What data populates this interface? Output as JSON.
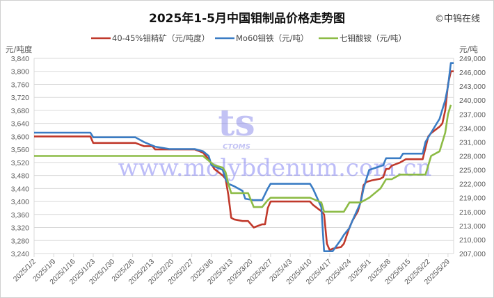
{
  "chart_data": {
    "type": "line",
    "title": "2025年1-5月中国钼制品价格走势图",
    "copyright": "©中钨在线",
    "watermark": {
      "logo_text": "CTOMS",
      "text": "www.molybdenum.com.cn"
    },
    "x_axis": {
      "type": "date",
      "range": [
        "2025-01-02",
        "2025-05-31"
      ],
      "tick_labels": [
        "2025/1/2",
        "2025/1/9",
        "2025/1/16",
        "2025/1/23",
        "2025/1/30",
        "2025/2/6",
        "2025/2/13",
        "2025/2/20",
        "2025/2/27",
        "2025/3/6",
        "2025/3/13",
        "2025/3/20",
        "2025/3/27",
        "2025/4/3",
        "2025/4/10",
        "2025/4/17",
        "2025/4/24",
        "2025/5/1",
        "2025/5/8",
        "2025/5/15",
        "2025/5/22",
        "2025/5/29"
      ]
    },
    "y_left": {
      "label": "元/吨度",
      "range": [
        3240,
        3840
      ],
      "step": 40,
      "grid": true
    },
    "y_right": {
      "label": "元/吨",
      "range": [
        207000,
        249000
      ],
      "step": 3000
    },
    "legend": {
      "placement": "top"
    },
    "series": [
      {
        "name": "40-45%钼精矿（元/吨度）",
        "axis": "left",
        "color": "#c0392b",
        "points": [
          [
            "2025-01-02",
            3600
          ],
          [
            "2025-01-22",
            3600
          ],
          [
            "2025-01-23",
            3580
          ],
          [
            "2025-02-07",
            3580
          ],
          [
            "2025-02-10",
            3570
          ],
          [
            "2025-02-13",
            3570
          ],
          [
            "2025-02-14",
            3560
          ],
          [
            "2025-02-28",
            3560
          ],
          [
            "2025-03-03",
            3550
          ],
          [
            "2025-03-05",
            3530
          ],
          [
            "2025-03-07",
            3500
          ],
          [
            "2025-03-10",
            3480
          ],
          [
            "2025-03-11",
            3470
          ],
          [
            "2025-03-12",
            3420
          ],
          [
            "2025-03-13",
            3350
          ],
          [
            "2025-03-14",
            3345
          ],
          [
            "2025-03-17",
            3340
          ],
          [
            "2025-03-19",
            3340
          ],
          [
            "2025-03-21",
            3320
          ],
          [
            "2025-03-24",
            3330
          ],
          [
            "2025-03-25",
            3330
          ],
          [
            "2025-03-26",
            3380
          ],
          [
            "2025-03-27",
            3400
          ],
          [
            "2025-04-10",
            3400
          ],
          [
            "2025-04-11",
            3390
          ],
          [
            "2025-04-14",
            3370
          ],
          [
            "2025-04-15",
            3360
          ],
          [
            "2025-04-16",
            3270
          ],
          [
            "2025-04-17",
            3250
          ],
          [
            "2025-04-18",
            3255
          ],
          [
            "2025-04-21",
            3260
          ],
          [
            "2025-04-22",
            3270
          ],
          [
            "2025-04-24",
            3320
          ],
          [
            "2025-04-25",
            3340
          ],
          [
            "2025-04-27",
            3370
          ],
          [
            "2025-04-28",
            3400
          ],
          [
            "2025-04-29",
            3450
          ],
          [
            "2025-04-30",
            3460
          ],
          [
            "2025-05-02",
            3465
          ],
          [
            "2025-05-05",
            3470
          ],
          [
            "2025-05-06",
            3475
          ],
          [
            "2025-05-07",
            3500
          ],
          [
            "2025-05-08",
            3500
          ],
          [
            "2025-05-09",
            3510
          ],
          [
            "2025-05-12",
            3520
          ],
          [
            "2025-05-14",
            3530
          ],
          [
            "2025-05-20",
            3530
          ],
          [
            "2025-05-22",
            3600
          ],
          [
            "2025-05-23",
            3610
          ],
          [
            "2025-05-26",
            3630
          ],
          [
            "2025-05-27",
            3640
          ],
          [
            "2025-05-28",
            3680
          ],
          [
            "2025-05-29",
            3760
          ],
          [
            "2025-05-30",
            3800
          ],
          [
            "2025-05-31",
            3800
          ]
        ]
      },
      {
        "name": "Mo60钼铁（元/吨）",
        "axis": "right",
        "color": "#3a7cc4",
        "points": [
          [
            "2025-01-02",
            233000
          ],
          [
            "2025-01-22",
            233000
          ],
          [
            "2025-01-23",
            232000
          ],
          [
            "2025-02-07",
            232000
          ],
          [
            "2025-02-10",
            231000
          ],
          [
            "2025-02-12",
            230500
          ],
          [
            "2025-02-14",
            230000
          ],
          [
            "2025-02-19",
            229500
          ],
          [
            "2025-02-28",
            229500
          ],
          [
            "2025-03-03",
            229000
          ],
          [
            "2025-03-05",
            228000
          ],
          [
            "2025-03-06",
            226000
          ],
          [
            "2025-03-10",
            225000
          ],
          [
            "2025-03-11",
            223000
          ],
          [
            "2025-03-12",
            222000
          ],
          [
            "2025-03-14",
            221500
          ],
          [
            "2025-03-17",
            220500
          ],
          [
            "2025-03-18",
            218800
          ],
          [
            "2025-03-21",
            218500
          ],
          [
            "2025-03-24",
            218500
          ],
          [
            "2025-03-26",
            221000
          ],
          [
            "2025-03-27",
            222000
          ],
          [
            "2025-04-10",
            222000
          ],
          [
            "2025-04-11",
            221000
          ],
          [
            "2025-04-14",
            217000
          ],
          [
            "2025-04-15",
            207500
          ],
          [
            "2025-04-18",
            207500
          ],
          [
            "2025-04-21",
            210000
          ],
          [
            "2025-04-22",
            211000
          ],
          [
            "2025-04-24",
            212500
          ],
          [
            "2025-04-25",
            214000
          ],
          [
            "2025-04-28",
            218000
          ],
          [
            "2025-04-29",
            221000
          ],
          [
            "2025-04-30",
            223000
          ],
          [
            "2025-05-01",
            225000
          ],
          [
            "2025-05-06",
            226000
          ],
          [
            "2025-05-07",
            227500
          ],
          [
            "2025-05-12",
            227500
          ],
          [
            "2025-05-13",
            228500
          ],
          [
            "2025-05-20",
            228500
          ],
          [
            "2025-05-21",
            231000
          ],
          [
            "2025-05-23",
            233000
          ],
          [
            "2025-05-26",
            236000
          ],
          [
            "2025-05-27",
            238000
          ],
          [
            "2025-05-28",
            240000
          ],
          [
            "2025-05-29",
            243000
          ],
          [
            "2025-05-30",
            248000
          ],
          [
            "2025-05-31",
            248000
          ]
        ]
      },
      {
        "name": "七钼酸铵（元/吨）",
        "axis": "right",
        "color": "#8cbb45",
        "points": [
          [
            "2025-01-02",
            228000
          ],
          [
            "2025-03-03",
            228000
          ],
          [
            "2025-03-05",
            227000
          ],
          [
            "2025-03-07",
            226000
          ],
          [
            "2025-03-10",
            225500
          ],
          [
            "2025-03-11",
            224500
          ],
          [
            "2025-03-12",
            222000
          ],
          [
            "2025-03-13",
            220000
          ],
          [
            "2025-03-19",
            220000
          ],
          [
            "2025-03-21",
            217000
          ],
          [
            "2025-03-24",
            217000
          ],
          [
            "2025-03-26",
            218500
          ],
          [
            "2025-03-27",
            219000
          ],
          [
            "2025-04-10",
            219000
          ],
          [
            "2025-04-14",
            218000
          ],
          [
            "2025-04-15",
            216000
          ],
          [
            "2025-04-22",
            216000
          ],
          [
            "2025-04-24",
            218000
          ],
          [
            "2025-04-28",
            218000
          ],
          [
            "2025-05-01",
            219000
          ],
          [
            "2025-05-05",
            221000
          ],
          [
            "2025-05-07",
            223000
          ],
          [
            "2025-05-09",
            223000
          ],
          [
            "2025-05-12",
            224000
          ],
          [
            "2025-05-21",
            224000
          ],
          [
            "2025-05-22",
            226000
          ],
          [
            "2025-05-23",
            228000
          ],
          [
            "2025-05-26",
            229000
          ],
          [
            "2025-05-28",
            233000
          ],
          [
            "2025-05-29",
            237000
          ],
          [
            "2025-05-30",
            239000
          ]
        ]
      }
    ]
  }
}
